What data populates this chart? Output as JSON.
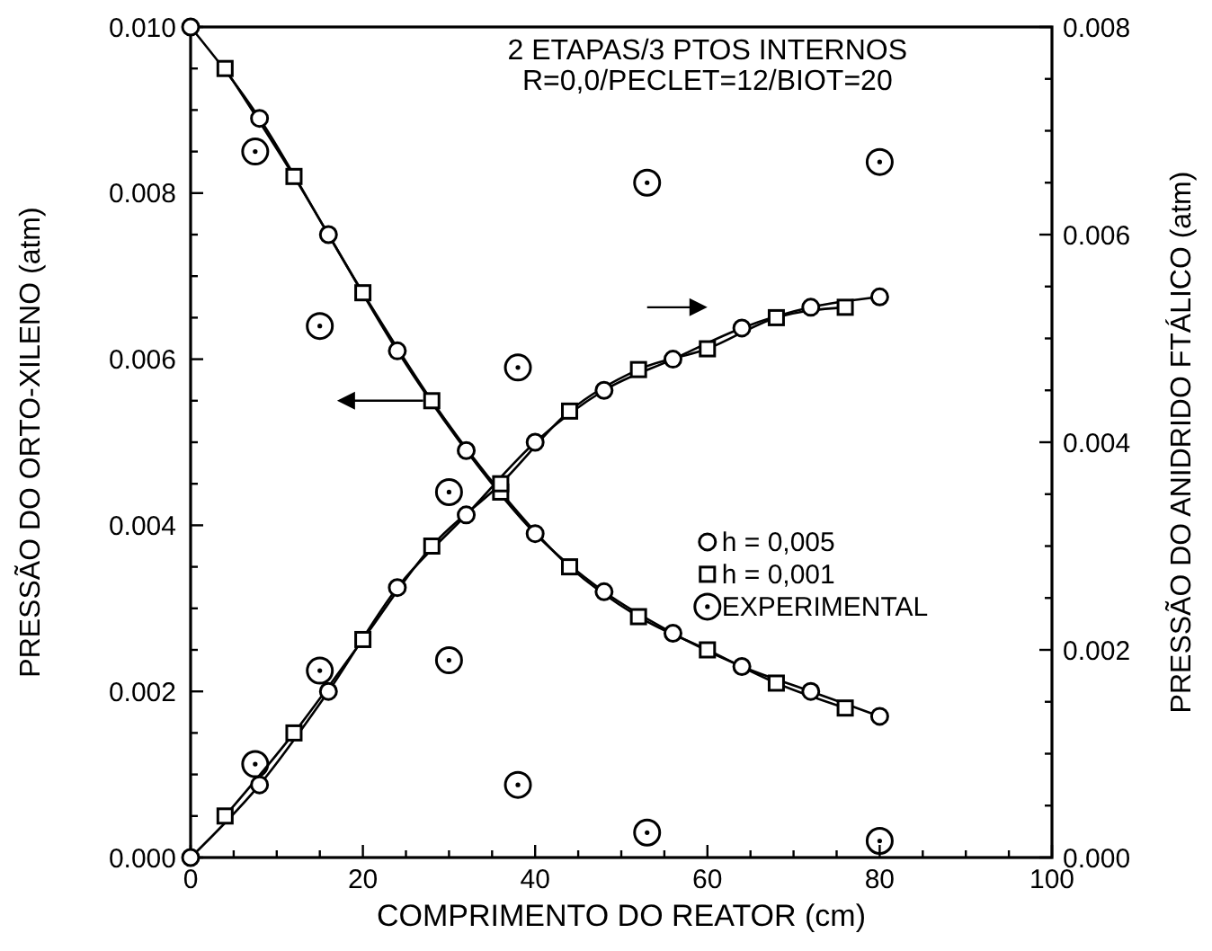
{
  "chart_data": {
    "type": "line",
    "title": "2 ETAPAS/3 PTOS INTERNOS",
    "subtitle": "R=0,0/PECLET=12/BIOT=20",
    "xlabel": "COMPRIMENTO DO REATOR (cm)",
    "ylabel": "PRESSÃO DO ORTO-XILENO (atm)",
    "y2label": "PRESSÃO DO ANIDRIDO FTÁLICO (atm)",
    "xlim": [
      0,
      100
    ],
    "xticks": [
      0,
      {
        "value": 5,
        "label": null
      },
      {
        "value": 10,
        "label": null
      },
      {
        "value": 15,
        "label": null
      },
      20,
      {
        "value": 25,
        "label": null
      },
      {
        "value": 30,
        "label": null
      },
      {
        "value": 35,
        "label": null
      },
      40,
      {
        "value": 45,
        "label": null
      },
      {
        "value": 50,
        "label": null
      },
      {
        "value": 55,
        "label": null
      },
      60,
      {
        "value": 65,
        "label": null
      },
      {
        "value": 70,
        "label": null
      },
      {
        "value": 75,
        "label": null
      },
      80,
      {
        "value": 85,
        "label": null
      },
      {
        "value": 90,
        "label": null
      },
      {
        "value": 95,
        "label": null
      },
      100
    ],
    "ylim": [
      0,
      0.01
    ],
    "yticks": [
      {
        "value": 0,
        "label": "0.000"
      },
      {
        "value": 0.0005,
        "label": null
      },
      {
        "value": 0.001,
        "label": null
      },
      {
        "value": 0.0015,
        "label": null
      },
      0.002,
      {
        "value": 0.0025,
        "label": null
      },
      {
        "value": 0.003,
        "label": null
      },
      {
        "value": 0.0035,
        "label": null
      },
      0.004,
      {
        "value": 0.0045,
        "label": null
      },
      {
        "value": 0.005,
        "label": null
      },
      {
        "value": 0.0055,
        "label": null
      },
      0.006,
      {
        "value": 0.0065,
        "label": null
      },
      {
        "value": 0.007,
        "label": null
      },
      {
        "value": 0.0075,
        "label": null
      },
      0.008,
      {
        "value": 0.0085,
        "label": null
      },
      {
        "value": 0.009,
        "label": null
      },
      {
        "value": 0.0095,
        "label": null
      },
      {
        "value": 0.01,
        "label": "0.010"
      }
    ],
    "y2lim": [
      0,
      0.008
    ],
    "y2ticks": [
      {
        "value": 0,
        "label": "0.000"
      },
      {
        "value": 0.0005,
        "label": null
      },
      {
        "value": 0.001,
        "label": null
      },
      {
        "value": 0.0015,
        "label": null
      },
      0.002,
      {
        "value": 0.0025,
        "label": null
      },
      {
        "value": 0.003,
        "label": null
      },
      {
        "value": 0.0035,
        "label": null
      },
      0.004,
      {
        "value": 0.0045,
        "label": null
      },
      {
        "value": 0.005,
        "label": null
      },
      {
        "value": 0.0055,
        "label": null
      },
      0.006,
      {
        "value": 0.0065,
        "label": null
      },
      {
        "value": 0.007,
        "label": null
      },
      {
        "value": 0.0075,
        "label": null
      },
      0.008
    ],
    "legend": "right",
    "line_style": "solid",
    "series": [
      {
        "name": "h = 0,005",
        "marker": "circle",
        "color": "#000000",
        "x": [
          0,
          8,
          16,
          24,
          32,
          40,
          48,
          56,
          64,
          72,
          80
        ],
        "values": [
          0.01,
          0.0089,
          0.0075,
          0.0061,
          0.0049,
          0.0039,
          0.0032,
          0.0027,
          0.0023,
          0.002,
          0.0017
        ]
      },
      {
        "name": "h = 0,001",
        "marker": "square",
        "color": "#000000",
        "x": [
          4,
          12,
          20,
          28,
          36,
          44,
          52,
          60,
          68,
          76
        ],
        "values": [
          0.0095,
          0.0082,
          0.0068,
          0.0055,
          0.0044,
          0.0035,
          0.0029,
          0.0025,
          0.0021,
          0.0018
        ]
      },
      {
        "name": "EXPERIMENTAL",
        "type": "scatter",
        "marker": "circle",
        "color": "#000000",
        "x": [
          7.5,
          15,
          30,
          38,
          53,
          80
        ],
        "values": [
          0.0085,
          0.0064,
          0.0044,
          0.0059,
          0.0003,
          0.0002
        ]
      },
      {
        "marker": "circle",
        "axis": "y2",
        "color": "#000000",
        "x": [
          0,
          8,
          16,
          24,
          32,
          40,
          48,
          56,
          64,
          72,
          80
        ],
        "values": [
          0,
          0.0007,
          0.0016,
          0.0026,
          0.0033,
          0.004,
          0.0045,
          0.0048,
          0.0051,
          0.0053,
          0.0054
        ]
      },
      {
        "marker": "square",
        "axis": "y2",
        "color": "#000000",
        "x": [
          4,
          12,
          20,
          28,
          36,
          44,
          52,
          60,
          68,
          76
        ],
        "values": [
          0.0004,
          0.0012,
          0.0021,
          0.003,
          0.0036,
          0.0043,
          0.0047,
          0.0049,
          0.0052,
          0.0053
        ]
      },
      {
        "type": "scatter",
        "marker": "circle",
        "axis": "y2",
        "color": "#000000",
        "x": [
          7.5,
          15,
          30,
          38,
          53,
          80
        ],
        "values": [
          0.0009,
          0.0018,
          0.0019,
          0.0007,
          0.0065,
          0.0067
        ]
      }
    ]
  }
}
